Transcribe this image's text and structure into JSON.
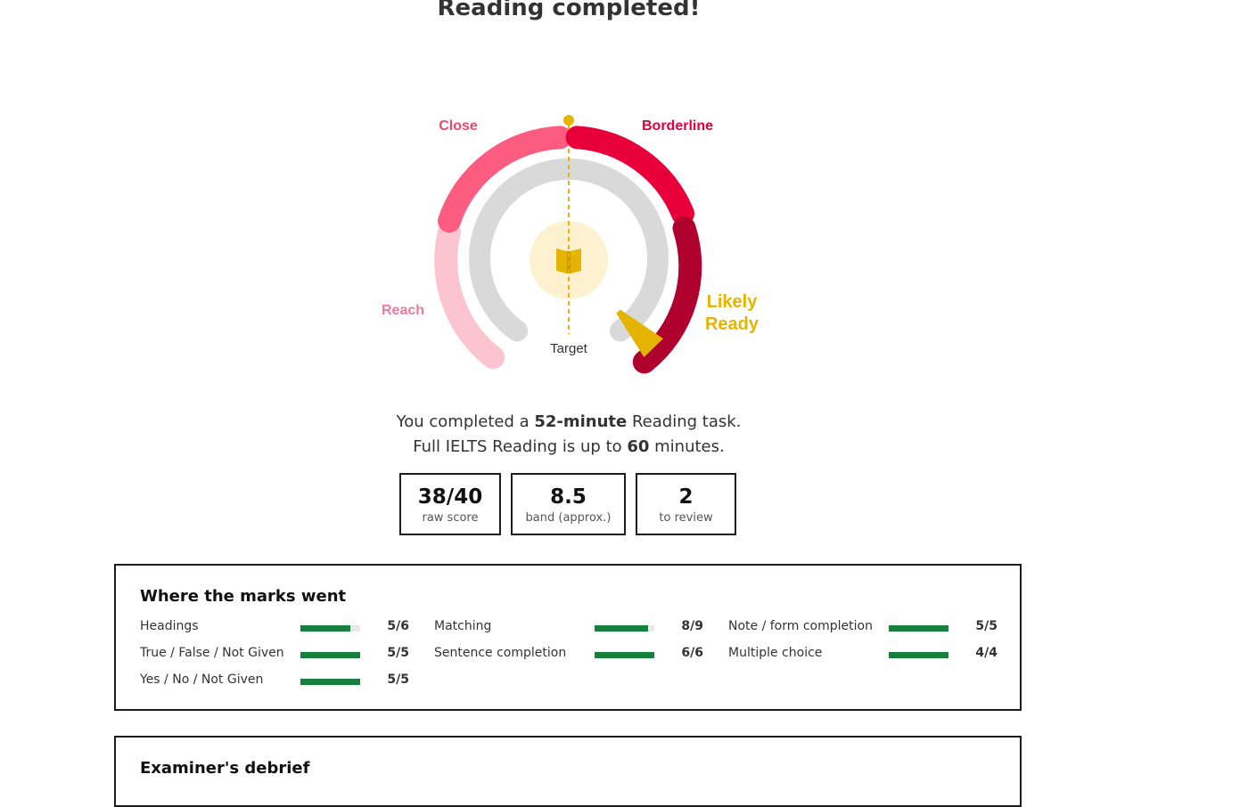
{
  "page": {
    "title": "Reading completed!"
  },
  "gauge": {
    "zones": [
      {
        "label": "Reach",
        "color": "#fbc4d0",
        "label_color": "#f07a9a"
      },
      {
        "label": "Close",
        "color": "#fb5c80",
        "label_color": "#f0466d"
      },
      {
        "label": "Borderline",
        "color": "#e8003a",
        "label_color": "#e0003a"
      },
      {
        "label": "Likely Ready",
        "color": "#b0002e",
        "label_color": "#e5b400"
      }
    ],
    "likely_line1": "Likely",
    "likely_line2": "Ready",
    "target_label": "Target",
    "center_icon": "book-icon",
    "accent_color": "#e5b400",
    "track_color": "#d9d9d9",
    "needle_value": 38,
    "needle_max": 40
  },
  "summary": {
    "line1_prefix": "You completed a ",
    "line1_strong": "52-minute",
    "line1_suffix": " Reading task.",
    "line2_prefix": "Full IELTS Reading is up to ",
    "line2_strong": "60",
    "line2_suffix": " minutes."
  },
  "stats": [
    {
      "value": "38/40",
      "label": "raw score"
    },
    {
      "value": "8.5",
      "label": "band (approx.)"
    },
    {
      "value": "2",
      "label": "to review"
    }
  ],
  "marks": {
    "title": "Where the marks went",
    "bar_color": "#17803d",
    "items": [
      {
        "name": "Headings",
        "score": "5/6",
        "fraction": 0.8333
      },
      {
        "name": "True / False / Not Given",
        "score": "5/5",
        "fraction": 1
      },
      {
        "name": "Yes / No / Not Given",
        "score": "5/5",
        "fraction": 1
      },
      {
        "name": "Matching",
        "score": "8/9",
        "fraction": 0.8889
      },
      {
        "name": "Sentence completion",
        "score": "6/6",
        "fraction": 1
      },
      {
        "name": "Note / form completion",
        "score": "5/5",
        "fraction": 1
      },
      {
        "name": "Multiple choice",
        "score": "4/4",
        "fraction": 1
      }
    ]
  },
  "debrief": {
    "title": "Examiner's debrief"
  }
}
